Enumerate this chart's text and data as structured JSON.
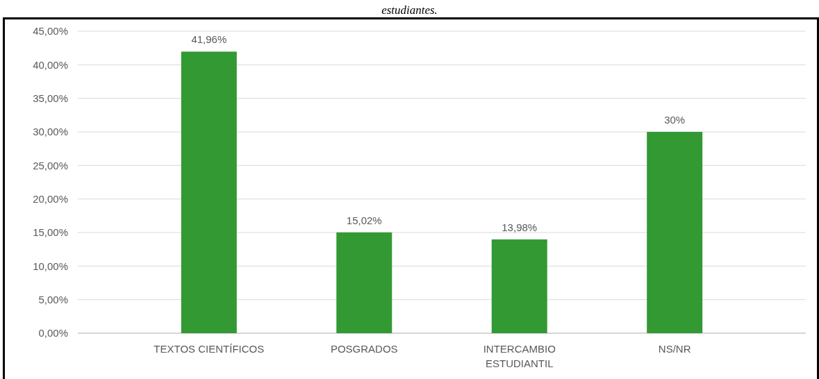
{
  "chart_data": {
    "type": "bar",
    "title": "estudiantes.",
    "categories": [
      "TEXTOS CIENTÍFICOS",
      "POSGRADOS",
      "INTERCAMBIO ESTUDIANTIL",
      "NS/NR"
    ],
    "values": [
      41.96,
      15.02,
      13.98,
      30
    ],
    "value_labels": [
      "41,96%",
      "15,02%",
      "13,98%",
      "30%"
    ],
    "color": "#339933",
    "ylim": [
      0,
      45
    ],
    "yticks": [
      {
        "value": 0,
        "label": "0,00%"
      },
      {
        "value": 5,
        "label": "5,00%"
      },
      {
        "value": 10,
        "label": "10,00%"
      },
      {
        "value": 15,
        "label": "15,00%"
      },
      {
        "value": 20,
        "label": "20,00%"
      },
      {
        "value": 25,
        "label": "25,00%"
      },
      {
        "value": 30,
        "label": "30,00%"
      },
      {
        "value": 35,
        "label": "35,00%"
      },
      {
        "value": 40,
        "label": "40,00%"
      },
      {
        "value": 45,
        "label": "45,00%"
      }
    ],
    "grid": "y"
  }
}
